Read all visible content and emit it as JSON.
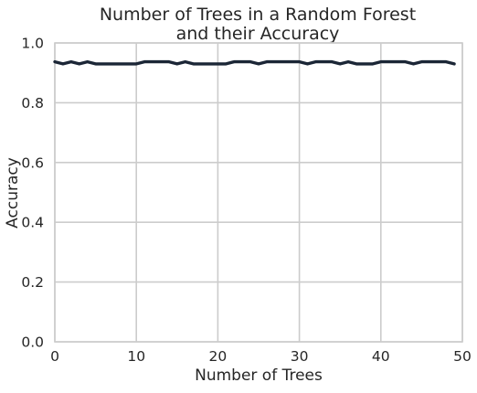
{
  "chart_data": {
    "type": "line",
    "title_lines": [
      "Number of Trees in a Random Forest",
      "and their Accuracy"
    ],
    "xlabel": "Number of Trees",
    "ylabel": "Accuracy",
    "xlim": [
      0,
      50
    ],
    "ylim": [
      0.0,
      1.0
    ],
    "xticks": [
      0,
      10,
      20,
      30,
      40,
      50
    ],
    "xtick_labels": [
      "0",
      "10",
      "20",
      "30",
      "40",
      "50"
    ],
    "yticks": [
      0.0,
      0.2,
      0.4,
      0.6,
      0.8,
      1.0
    ],
    "ytick_labels": [
      "0.0",
      "0.2",
      "0.4",
      "0.6",
      "0.8",
      "1.0"
    ],
    "grid": true,
    "line_color": "#1b2636",
    "series": [
      {
        "x": [
          0,
          1,
          2,
          3,
          4,
          5,
          6,
          7,
          8,
          9,
          10,
          11,
          12,
          13,
          14,
          15,
          16,
          17,
          18,
          19,
          20,
          21,
          22,
          23,
          24,
          25,
          26,
          27,
          28,
          29,
          30,
          31,
          32,
          33,
          34,
          35,
          36,
          37,
          38,
          39,
          40,
          41,
          42,
          43,
          44,
          45,
          46,
          47,
          48,
          49
        ],
        "values": [
          0.937,
          0.93,
          0.937,
          0.93,
          0.937,
          0.93,
          0.93,
          0.93,
          0.93,
          0.93,
          0.93,
          0.937,
          0.937,
          0.937,
          0.937,
          0.93,
          0.937,
          0.93,
          0.93,
          0.93,
          0.93,
          0.93,
          0.937,
          0.937,
          0.937,
          0.93,
          0.937,
          0.937,
          0.937,
          0.937,
          0.937,
          0.93,
          0.937,
          0.937,
          0.937,
          0.93,
          0.937,
          0.93,
          0.93,
          0.93,
          0.937,
          0.937,
          0.937,
          0.937,
          0.93,
          0.937,
          0.937,
          0.937,
          0.937,
          0.93
        ]
      }
    ]
  }
}
